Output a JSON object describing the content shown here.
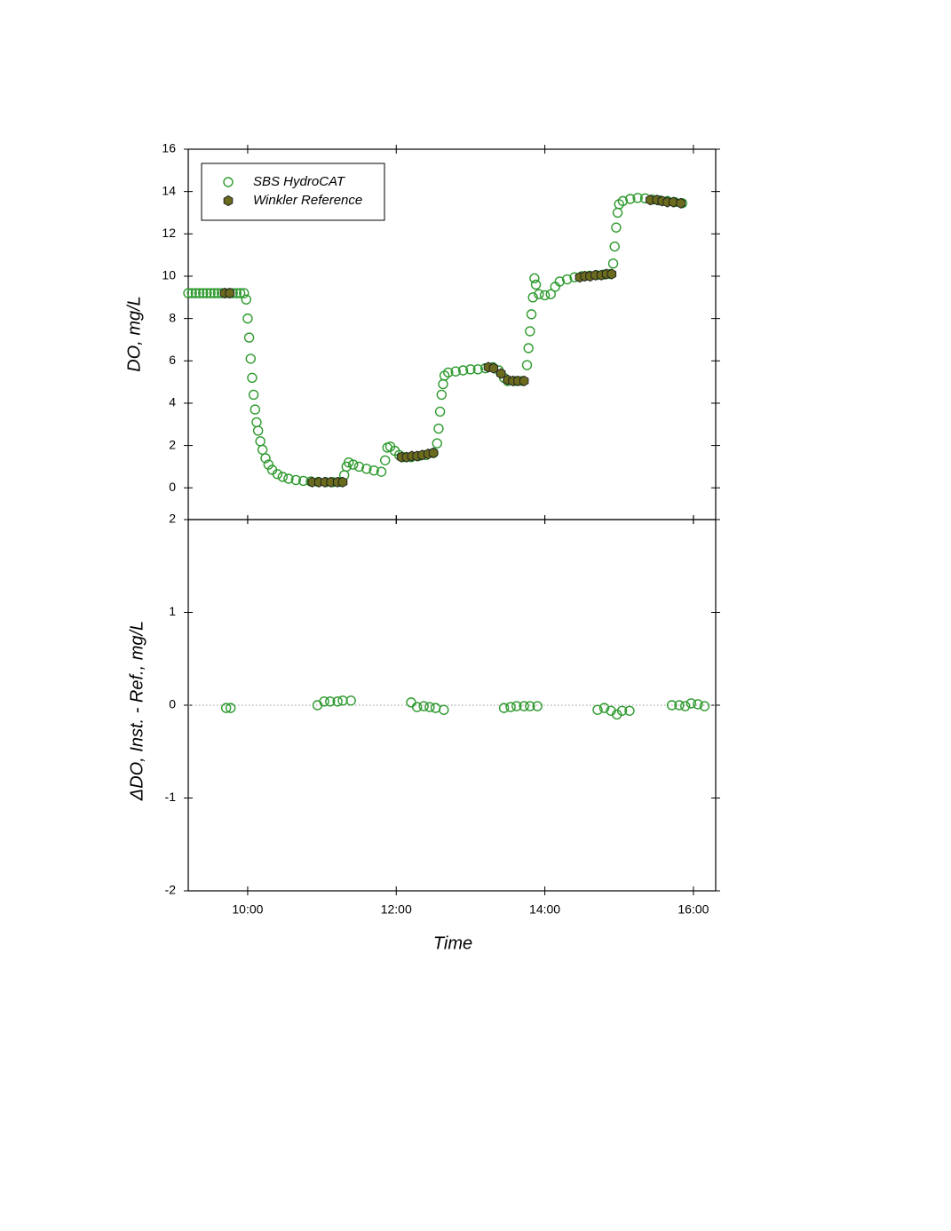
{
  "chart_data": [
    {
      "type": "scatter",
      "ylabel": "DO, mg/L",
      "xlim": [
        9.2,
        16.3
      ],
      "ylim": [
        -1.5,
        16
      ],
      "yticks": [
        0,
        2,
        4,
        6,
        8,
        10,
        12,
        14,
        16
      ],
      "legend": "upper left",
      "series": [
        {
          "name": "SBS HydroCAT",
          "color": "#2e9a2e",
          "marker": "open-circle",
          "x": [
            9.2,
            9.25,
            9.3,
            9.35,
            9.4,
            9.45,
            9.5,
            9.55,
            9.6,
            9.65,
            9.7,
            9.75,
            9.8,
            9.85,
            9.9,
            9.95,
            9.98,
            10.0,
            10.02,
            10.04,
            10.06,
            10.08,
            10.1,
            10.12,
            10.14,
            10.17,
            10.2,
            10.24,
            10.28,
            10.33,
            10.4,
            10.47,
            10.55,
            10.65,
            10.75,
            10.85,
            10.95,
            11.05,
            11.15,
            11.25,
            11.3,
            11.33,
            11.36,
            11.42,
            11.5,
            11.6,
            11.7,
            11.8,
            11.85,
            11.88,
            11.92,
            11.98,
            12.04,
            12.1,
            12.2,
            12.3,
            12.4,
            12.5,
            12.55,
            12.57,
            12.59,
            12.61,
            12.63,
            12.65,
            12.7,
            12.8,
            12.9,
            13.0,
            13.1,
            13.2,
            13.3,
            13.38,
            13.45,
            13.5,
            13.6,
            13.7,
            13.76,
            13.78,
            13.8,
            13.82,
            13.84,
            13.86,
            13.88,
            13.92,
            14.0,
            14.08,
            14.14,
            14.2,
            14.3,
            14.4,
            14.5,
            14.6,
            14.7,
            14.8,
            14.88,
            14.92,
            14.94,
            14.96,
            14.98,
            15.0,
            15.05,
            15.15,
            15.25,
            15.35,
            15.45,
            15.55,
            15.65,
            15.75,
            15.85
          ],
          "values": [
            9.2,
            9.2,
            9.2,
            9.2,
            9.2,
            9.2,
            9.2,
            9.2,
            9.2,
            9.2,
            9.2,
            9.2,
            9.2,
            9.2,
            9.2,
            9.2,
            8.9,
            8.0,
            7.1,
            6.1,
            5.2,
            4.4,
            3.7,
            3.1,
            2.7,
            2.2,
            1.8,
            1.4,
            1.1,
            0.85,
            0.65,
            0.52,
            0.43,
            0.37,
            0.33,
            0.3,
            0.28,
            0.27,
            0.27,
            0.28,
            0.6,
            1.0,
            1.2,
            1.1,
            1.0,
            0.9,
            0.82,
            0.76,
            1.3,
            1.9,
            1.95,
            1.75,
            1.55,
            1.45,
            1.45,
            1.5,
            1.55,
            1.65,
            2.1,
            2.8,
            3.6,
            4.4,
            4.9,
            5.3,
            5.45,
            5.5,
            5.55,
            5.6,
            5.6,
            5.65,
            5.7,
            5.55,
            5.2,
            5.05,
            5.05,
            5.05,
            5.8,
            6.6,
            7.4,
            8.2,
            9.0,
            9.9,
            9.6,
            9.15,
            9.1,
            9.15,
            9.5,
            9.75,
            9.85,
            9.95,
            10.0,
            10.02,
            10.05,
            10.08,
            10.1,
            10.6,
            11.4,
            12.3,
            13.0,
            13.4,
            13.55,
            13.65,
            13.7,
            13.68,
            13.62,
            13.58,
            13.55,
            13.5,
            13.45
          ]
        },
        {
          "name": "Winkler Reference",
          "color": "#6b6b1e",
          "marker": "filled-hexagon",
          "x": [
            9.69,
            9.76,
            10.87,
            10.96,
            11.04,
            11.12,
            11.21,
            11.28,
            12.07,
            12.14,
            12.21,
            12.28,
            12.35,
            12.43,
            12.5,
            13.24,
            13.31,
            13.41,
            13.5,
            13.57,
            13.64,
            13.72,
            14.47,
            14.54,
            14.61,
            14.68,
            14.76,
            14.83,
            14.9,
            15.42,
            15.51,
            15.58,
            15.65,
            15.73,
            15.83
          ],
          "values": [
            9.2,
            9.2,
            0.27,
            0.27,
            0.27,
            0.27,
            0.27,
            0.27,
            1.45,
            1.45,
            1.5,
            1.5,
            1.55,
            1.6,
            1.65,
            5.7,
            5.65,
            5.4,
            5.1,
            5.05,
            5.05,
            5.05,
            9.95,
            10.0,
            10.0,
            10.05,
            10.05,
            10.1,
            10.1,
            13.6,
            13.6,
            13.55,
            13.5,
            13.5,
            13.45
          ]
        }
      ]
    },
    {
      "type": "scatter",
      "xlabel": "Time",
      "ylabel": "ΔDO, Inst. - Ref., mg/L",
      "xlim": [
        9.2,
        16.3
      ],
      "ylim": [
        -2,
        2
      ],
      "yticks": [
        -2,
        -1,
        0,
        1,
        2
      ],
      "xticks": [
        {
          "value": 10,
          "label": "10:00"
        },
        {
          "value": 12,
          "label": "12:00"
        },
        {
          "value": 14,
          "label": "14:00"
        },
        {
          "value": 16,
          "label": "16:00"
        }
      ],
      "reference_line": 0,
      "series": [
        {
          "color": "#2e9a2e",
          "marker": "open-circle",
          "x": [
            9.71,
            9.77,
            10.94,
            11.03,
            11.11,
            11.21,
            11.28,
            11.39,
            12.2,
            12.28,
            12.37,
            12.45,
            12.53,
            12.64,
            13.45,
            13.54,
            13.62,
            13.72,
            13.8,
            13.9,
            14.71,
            14.8,
            14.89,
            14.97,
            15.04,
            15.14,
            15.71,
            15.81,
            15.89,
            15.97,
            16.06,
            16.15
          ],
          "values": [
            -0.03,
            -0.03,
            0.0,
            0.04,
            0.04,
            0.04,
            0.05,
            0.05,
            0.03,
            -0.02,
            -0.01,
            -0.02,
            -0.03,
            -0.05,
            -0.03,
            -0.02,
            -0.01,
            -0.01,
            -0.01,
            -0.01,
            -0.05,
            -0.03,
            -0.06,
            -0.1,
            -0.06,
            -0.06,
            0.0,
            0.0,
            -0.01,
            0.02,
            0.01,
            -0.01
          ]
        }
      ]
    }
  ]
}
